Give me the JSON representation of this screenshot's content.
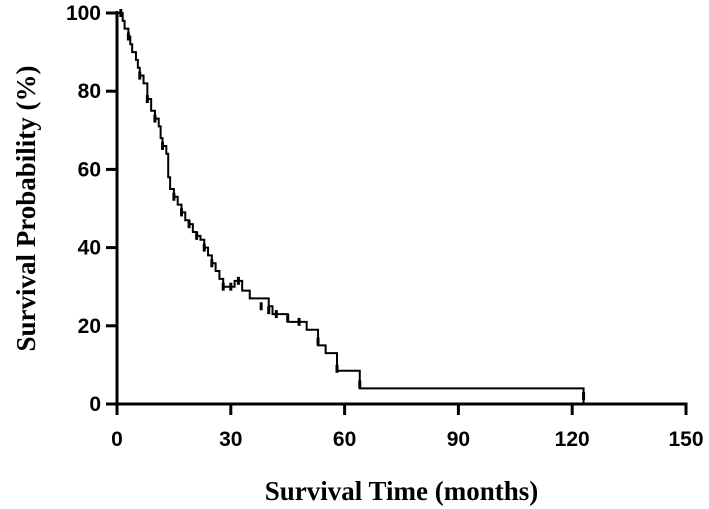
{
  "chart_data": {
    "type": "line",
    "title": "",
    "xlabel": "Survival Time (months)",
    "ylabel": "Survival Probability (%)",
    "xlim": [
      0,
      150
    ],
    "ylim": [
      0,
      100
    ],
    "xticks": [
      0,
      30,
      60,
      90,
      120,
      150
    ],
    "yticks": [
      0,
      20,
      40,
      60,
      80,
      100
    ],
    "grid": false,
    "legend": "none",
    "line_color": "#000000",
    "series": [
      {
        "step": true,
        "points": [
          [
            0,
            100
          ],
          [
            1,
            100
          ],
          [
            1.5,
            98
          ],
          [
            2,
            96
          ],
          [
            3,
            94
          ],
          [
            3.5,
            92
          ],
          [
            4,
            90
          ],
          [
            5,
            88
          ],
          [
            5.5,
            86
          ],
          [
            6,
            84
          ],
          [
            7,
            82
          ],
          [
            8,
            78
          ],
          [
            9,
            75
          ],
          [
            10,
            73
          ],
          [
            11,
            71
          ],
          [
            11.5,
            68
          ],
          [
            12,
            66
          ],
          [
            13,
            64
          ],
          [
            13.5,
            58
          ],
          [
            14,
            55
          ],
          [
            15,
            53
          ],
          [
            16,
            51
          ],
          [
            17,
            49
          ],
          [
            18,
            47
          ],
          [
            19,
            46
          ],
          [
            20,
            44
          ],
          [
            21,
            43
          ],
          [
            22,
            42
          ],
          [
            23,
            40
          ],
          [
            24,
            38
          ],
          [
            25,
            36
          ],
          [
            26,
            34
          ],
          [
            27,
            32
          ],
          [
            28,
            30
          ],
          [
            31,
            31.5
          ],
          [
            33,
            29
          ],
          [
            35,
            27
          ],
          [
            40,
            25
          ],
          [
            41,
            23
          ],
          [
            45,
            21
          ],
          [
            50,
            19
          ],
          [
            53,
            15
          ],
          [
            55,
            13
          ],
          [
            58,
            8.5
          ],
          [
            63,
            8.5
          ],
          [
            64,
            4
          ],
          [
            123,
            4
          ],
          [
            123,
            1
          ],
          [
            123,
            0
          ]
        ],
        "censored": [
          [
            1,
            100
          ],
          [
            3,
            94
          ],
          [
            6,
            84
          ],
          [
            8,
            78
          ],
          [
            10,
            73
          ],
          [
            12,
            66
          ],
          [
            15,
            53
          ],
          [
            17,
            49
          ],
          [
            19,
            46
          ],
          [
            21,
            43
          ],
          [
            23,
            40
          ],
          [
            25,
            36
          ],
          [
            28,
            30
          ],
          [
            30,
            30
          ],
          [
            32,
            31.5
          ],
          [
            38,
            25
          ],
          [
            40,
            24
          ],
          [
            42,
            23
          ],
          [
            45,
            22
          ],
          [
            48,
            21
          ],
          [
            53,
            16
          ],
          [
            58,
            9
          ],
          [
            64,
            5
          ],
          [
            123,
            2
          ]
        ]
      }
    ]
  }
}
